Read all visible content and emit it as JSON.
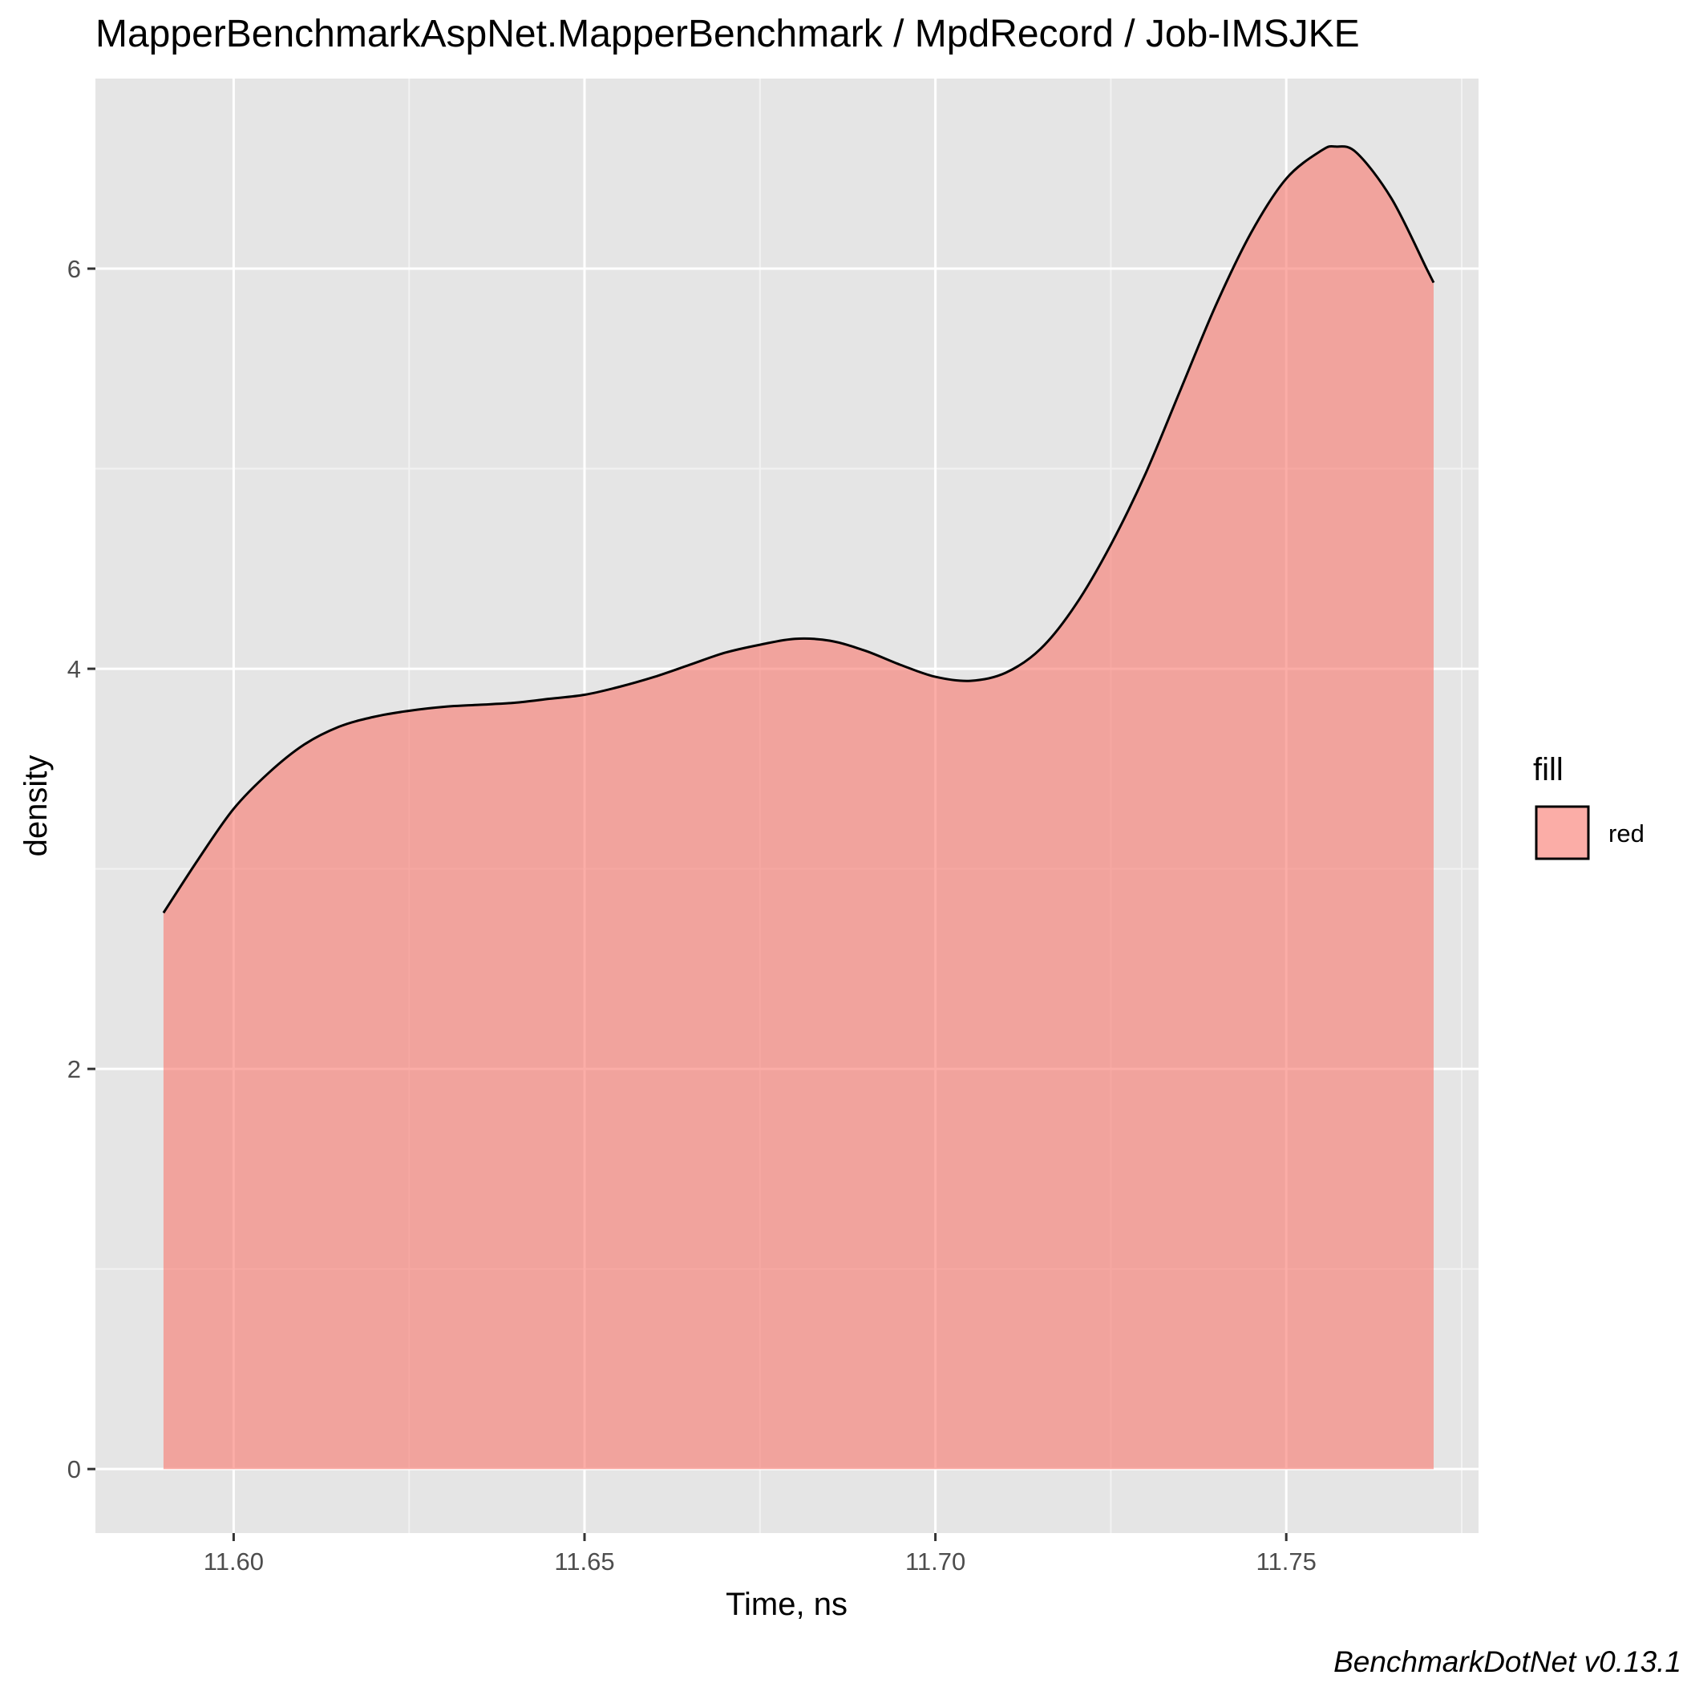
{
  "chart_data": {
    "type": "area",
    "title": "MapperBenchmarkAspNet.MapperBenchmark / MpdRecord / Job-IMSJKE",
    "xlabel": "Time, ns",
    "ylabel": "density",
    "caption": "BenchmarkDotNet v0.13.1",
    "xlim": [
      11.5803,
      11.7774
    ],
    "ylim": [
      -0.32,
      6.95
    ],
    "x_ticks": [
      11.6,
      11.65,
      11.7,
      11.75
    ],
    "x_tick_labels": [
      "11.60",
      "11.65",
      "11.70",
      "11.75"
    ],
    "x_minor_ticks": [
      11.575,
      11.625,
      11.675,
      11.725,
      11.775
    ],
    "y_ticks": [
      0,
      2,
      4,
      6
    ],
    "y_tick_labels": [
      "0",
      "2",
      "4",
      "6"
    ],
    "y_minor_ticks": [
      1,
      3,
      5
    ],
    "grid": true,
    "legend": {
      "title": "fill",
      "position": "right",
      "items": [
        {
          "label": "red",
          "color": "#F8766D"
        }
      ]
    },
    "series": [
      {
        "name": "red",
        "fill": "#F8766D",
        "fill_opacity": 0.6,
        "line_color": "#000000",
        "x": [
          11.59,
          11.595,
          11.6,
          11.605,
          11.61,
          11.615,
          11.62,
          11.625,
          11.63,
          11.635,
          11.64,
          11.645,
          11.65,
          11.655,
          11.66,
          11.665,
          11.67,
          11.675,
          11.68,
          11.685,
          11.69,
          11.695,
          11.7,
          11.705,
          11.71,
          11.715,
          11.72,
          11.725,
          11.73,
          11.735,
          11.74,
          11.745,
          11.75,
          11.755,
          11.757,
          11.76,
          11.765,
          11.77,
          11.771
        ],
        "y": [
          2.78,
          3.05,
          3.3,
          3.48,
          3.62,
          3.71,
          3.76,
          3.79,
          3.81,
          3.82,
          3.83,
          3.85,
          3.87,
          3.91,
          3.96,
          4.02,
          4.08,
          4.12,
          4.15,
          4.14,
          4.09,
          4.02,
          3.96,
          3.94,
          3.98,
          4.1,
          4.32,
          4.62,
          4.98,
          5.4,
          5.82,
          6.18,
          6.45,
          6.59,
          6.61,
          6.58,
          6.35,
          6.0,
          5.93
        ]
      }
    ]
  }
}
